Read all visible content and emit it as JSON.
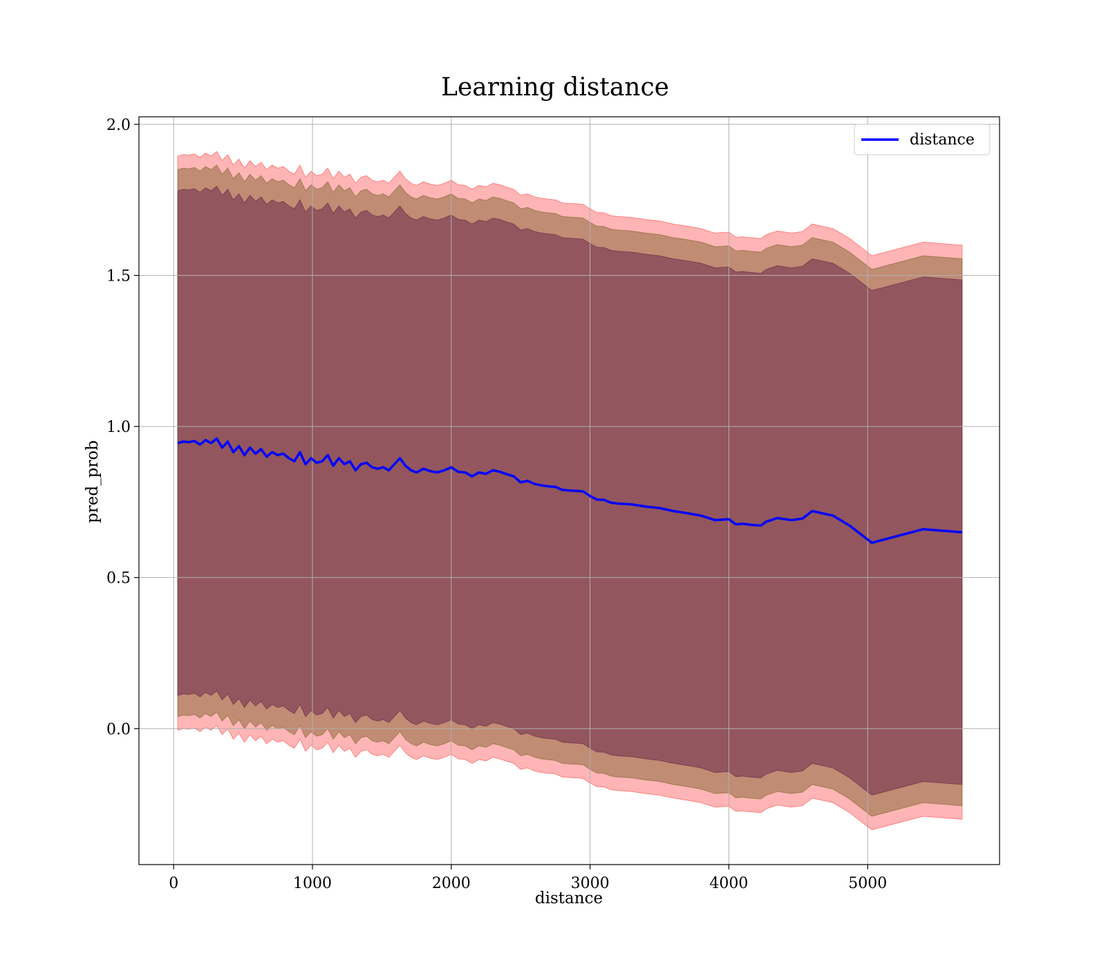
{
  "chart_data": {
    "type": "line",
    "title": "Learning distance",
    "xlabel": "distance",
    "ylabel": "pred_prob",
    "xlim": [
      -250,
      5950
    ],
    "ylim": [
      -0.45,
      2.025
    ],
    "xticks": [
      0,
      1000,
      2000,
      3000,
      4000,
      5000
    ],
    "xtick_labels": [
      "0",
      "1000",
      "2000",
      "3000",
      "4000",
      "5000"
    ],
    "yticks": [
      0.0,
      0.5,
      1.0,
      1.5,
      2.0
    ],
    "ytick_labels": [
      "0.0",
      "0.5",
      "1.0",
      "1.5",
      "2.0"
    ],
    "grid": true,
    "legend_placement": "top-right",
    "legend": [
      "distance"
    ],
    "series": [
      {
        "name": "distance",
        "color": "#0000ff",
        "x": [
          30,
          70,
          110,
          150,
          190,
          230,
          270,
          310,
          350,
          390,
          430,
          470,
          510,
          550,
          590,
          630,
          670,
          710,
          750,
          790,
          830,
          870,
          910,
          950,
          990,
          1030,
          1070,
          1110,
          1150,
          1190,
          1230,
          1270,
          1310,
          1350,
          1390,
          1430,
          1470,
          1510,
          1550,
          1590,
          1630,
          1670,
          1710,
          1750,
          1800,
          1850,
          1900,
          1950,
          2000,
          2050,
          2100,
          2150,
          2200,
          2250,
          2300,
          2350,
          2400,
          2450,
          2500,
          2550,
          2600,
          2650,
          2700,
          2750,
          2800,
          2850,
          2900,
          2950,
          3000,
          3050,
          3100,
          3150,
          3200,
          3300,
          3400,
          3500,
          3600,
          3700,
          3800,
          3900,
          4000,
          4050,
          4100,
          4150,
          4230,
          4270,
          4350,
          4450,
          4530,
          4600,
          4750,
          4870,
          5030,
          5400,
          5680
        ],
        "y": [
          0.945,
          0.95,
          0.948,
          0.952,
          0.94,
          0.955,
          0.945,
          0.96,
          0.93,
          0.95,
          0.915,
          0.935,
          0.905,
          0.93,
          0.91,
          0.925,
          0.9,
          0.915,
          0.905,
          0.91,
          0.895,
          0.885,
          0.915,
          0.875,
          0.895,
          0.88,
          0.885,
          0.905,
          0.87,
          0.895,
          0.875,
          0.885,
          0.855,
          0.875,
          0.88,
          0.865,
          0.86,
          0.865,
          0.855,
          0.875,
          0.895,
          0.87,
          0.855,
          0.848,
          0.86,
          0.852,
          0.848,
          0.855,
          0.865,
          0.85,
          0.848,
          0.835,
          0.848,
          0.843,
          0.855,
          0.85,
          0.842,
          0.835,
          0.815,
          0.82,
          0.81,
          0.805,
          0.802,
          0.8,
          0.79,
          0.788,
          0.787,
          0.785,
          0.77,
          0.758,
          0.757,
          0.748,
          0.745,
          0.742,
          0.735,
          0.73,
          0.72,
          0.713,
          0.705,
          0.69,
          0.693,
          0.676,
          0.678,
          0.675,
          0.672,
          0.685,
          0.697,
          0.69,
          0.695,
          0.72,
          0.705,
          0.672,
          0.615,
          0.66,
          0.65
        ]
      }
    ],
    "bands": [
      {
        "name": "",
        "color": "#ff5a5a",
        "opacity": 0.45,
        "halfwidth": 0.95
      },
      {
        "name": "",
        "color": "#8c6a3c",
        "opacity": 0.55,
        "halfwidth": 0.905
      },
      {
        "name": "",
        "color": "#6e2a4c",
        "opacity": 0.55,
        "halfwidth": 0.835
      }
    ]
  }
}
